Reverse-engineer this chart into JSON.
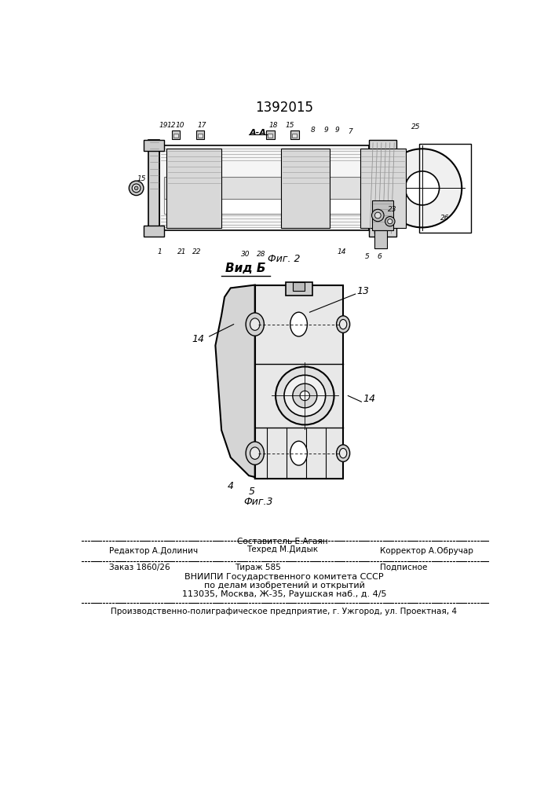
{
  "title_number": "1392015",
  "fig2_label": "Фиг. 2",
  "fig3_label": "Фиг.3",
  "view_label": "Вид Б",
  "cut_label": "А-А",
  "footer_line1_left": "Редактор А.Долинич",
  "footer_line1_center_1": "Составитель Е.Агаян",
  "footer_line1_center_2": "Техред М.Дидык",
  "footer_line1_right": "Корректор А.Обручар",
  "footer_line2_left": "Заказ 1860/26",
  "footer_line2_center": "Тираж 585",
  "footer_line2_right": "Подписное",
  "footer_org1": "ВНИИПИ Государственного комитета СССР",
  "footer_org2": "по делам изобретений и открытий",
  "footer_org3": "113035, Москва, Ж-35, Раушская наб., д. 4/5",
  "footer_print": "Производственно-полиграфическое предприятие, г. Ужгород, ул. Проектная, 4",
  "bg_color": "#ffffff"
}
